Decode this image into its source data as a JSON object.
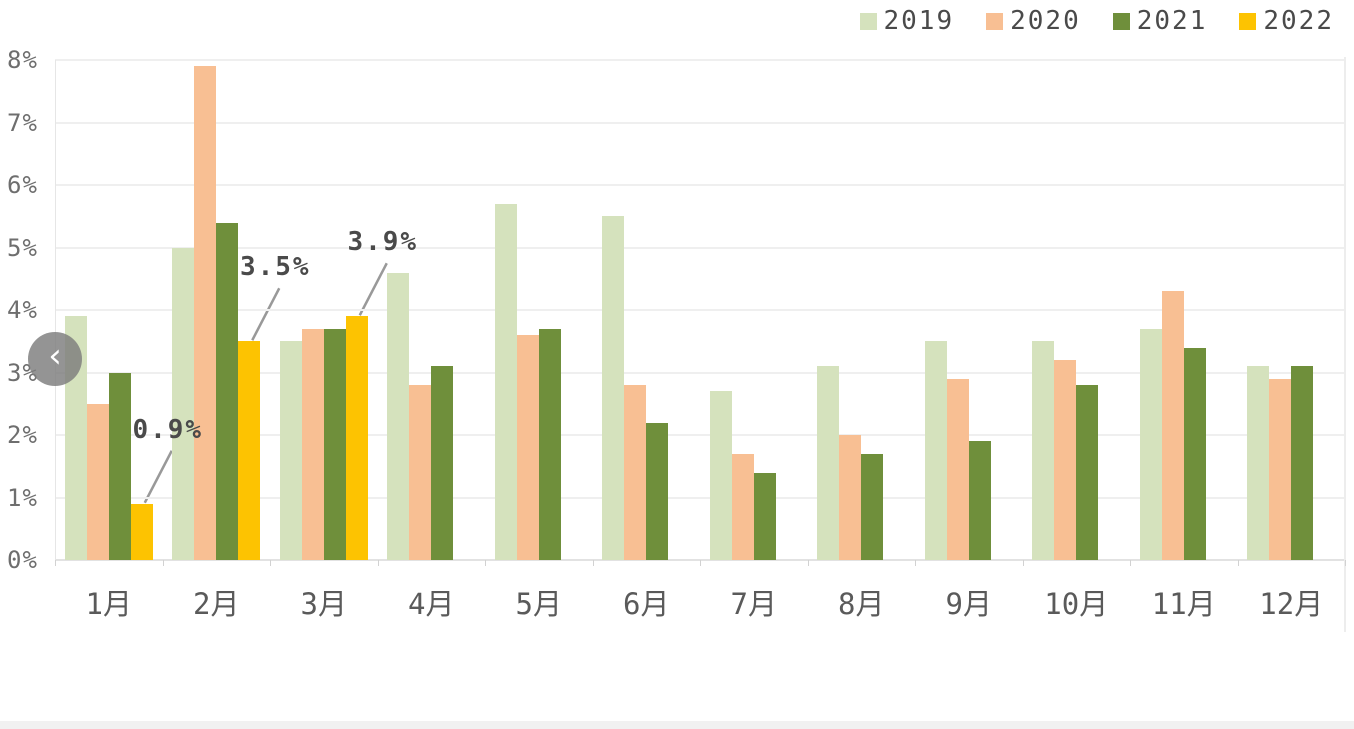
{
  "chart_data": {
    "type": "bar",
    "categories": [
      "1月",
      "2月",
      "3月",
      "4月",
      "5月",
      "6月",
      "7月",
      "8月",
      "9月",
      "10月",
      "11月",
      "12月"
    ],
    "series": [
      {
        "name": "2019",
        "color": "#d5e2bd",
        "values": [
          3.9,
          5.0,
          3.5,
          4.6,
          5.7,
          5.5,
          2.7,
          3.1,
          3.5,
          3.5,
          3.7,
          3.1
        ]
      },
      {
        "name": "2020",
        "color": "#f8bf93",
        "values": [
          2.5,
          7.9,
          3.7,
          2.8,
          3.6,
          2.8,
          1.7,
          2.0,
          2.9,
          3.2,
          4.3,
          2.9
        ]
      },
      {
        "name": "2021",
        "color": "#6f8f3b",
        "values": [
          3.0,
          5.4,
          3.7,
          3.1,
          3.7,
          2.2,
          1.4,
          1.7,
          1.9,
          2.8,
          3.4,
          3.1
        ]
      },
      {
        "name": "2022",
        "color": "#fdc301",
        "values": [
          0.9,
          3.5,
          3.9,
          null,
          null,
          null,
          null,
          null,
          null,
          null,
          null,
          null
        ]
      }
    ],
    "y_tick_labels": [
      "0%",
      "1%",
      "2%",
      "3%",
      "4%",
      "5%",
      "6%",
      "7%",
      "8%"
    ],
    "ylim": [
      0,
      8
    ],
    "grid": true,
    "legend_position": "top-right",
    "annotations": [
      {
        "text": "0.9%",
        "series": "2022",
        "month_index": 0,
        "value": 0.9
      },
      {
        "text": "3.5%",
        "series": "2022",
        "month_index": 1,
        "value": 3.5
      },
      {
        "text": "3.9%",
        "series": "2022",
        "month_index": 2,
        "value": 3.9
      }
    ],
    "annotation_line_color": "#999999"
  },
  "carousel": {
    "prev_icon": "‹"
  },
  "colors": {
    "gridline": "#efefef",
    "axis_line": "#e6e6e6",
    "y_label": "#6e6e6e",
    "month_label": "#5a5a5a",
    "legend_text": "#4a4a4a",
    "footer_strip": "#f1f1f1"
  }
}
